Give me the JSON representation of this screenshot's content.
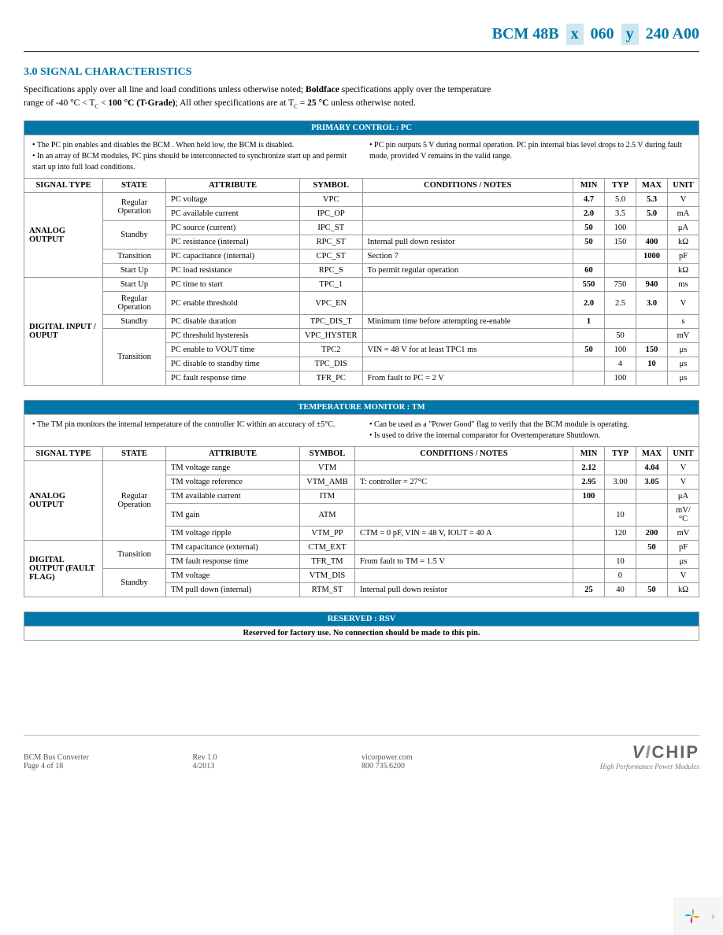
{
  "partNumber": {
    "p1": "BCM",
    "p2": "48B",
    "x": "x",
    "p3": "060",
    "y": "y",
    "p4": "240",
    "p5": "A00"
  },
  "sectionTitle": "3.0 SIGNAL CHARACTERISTICS",
  "intro1": "Specifications apply over all line and load conditions unless otherwise noted; ",
  "intro1b": "Boldface",
  "intro1c": " specifications apply over the temperature",
  "intro2a": "range of -40 °C < T",
  "intro2b": "C",
  "intro2c": " < ",
  "intro2d": "100 °C (T-Grade)",
  "intro2e": "; All other specifications are at T",
  "intro2f": "C",
  "intro2g": " = ",
  "intro2h": "25 °C",
  "intro2i": " unless otherwise noted.",
  "pc": {
    "title": "PRIMARY CONTROL : PC",
    "note1": "• The PC pin enables and disables the BCM          . When held low, the BCM     is disabled.",
    "note2": "• In an array of BCM        modules, PC pins should be interconnected to synchronize start up and permit start up into full load conditions.",
    "note3": "• PC pin outputs 5 V during normal operation. PC pin internal bias level drops to 2.5 V during fault mode, provided V              remains in the valid range.",
    "headers": {
      "signal": "SIGNAL TYPE",
      "state": "STATE",
      "attr": "ATTRIBUTE",
      "sym": "SYMBOL",
      "cond": "CONDITIONS / NOTES",
      "min": "MIN",
      "typ": "TYP",
      "max": "MAX",
      "unit": "UNIT"
    },
    "rows": [
      {
        "signal": "ANALOG OUTPUT",
        "sigSpan": 6,
        "state": "Regular Operation",
        "stSpan": 2,
        "attr": "PC voltage",
        "sym": "VPC",
        "cond": "",
        "min": "4.7",
        "typ": "5.0",
        "max": "5.3",
        "unit": "V"
      },
      {
        "attr": "PC available current",
        "sym": "IPC_OP",
        "cond": "",
        "min": "2.0",
        "typ": "3.5",
        "max": "5.0",
        "unit": "mA"
      },
      {
        "state": "Standby",
        "stSpan": 2,
        "attr": "PC source (current)",
        "sym": "IPC_ST",
        "cond": "",
        "min": "50",
        "typ": "100",
        "max": "",
        "unit": "μA"
      },
      {
        "attr": "PC resistance (internal)",
        "sym": "RPC_ST",
        "cond": "Internal pull down resistor",
        "min": "50",
        "typ": "150",
        "max": "400",
        "unit": "kΩ"
      },
      {
        "state": "Transition",
        "stSpan": 1,
        "attr": "PC capacitance (internal)",
        "sym": "CPC_ST",
        "cond": "Section 7",
        "min": "",
        "typ": "",
        "max": "1000",
        "unit": "pF"
      },
      {
        "state": "Start Up",
        "stSpan": 1,
        "attr": "PC load resistance",
        "sym": "RPC_S",
        "cond": "To permit regular operation",
        "min": "60",
        "typ": "",
        "max": "",
        "unit": "kΩ"
      },
      {
        "signal": "DIGITAL INPUT / OUPUT",
        "sigSpan": 7,
        "state": "Start Up",
        "stSpan": 1,
        "attr": "PC time to start",
        "sym": "TPC_1",
        "cond": "",
        "min": "550",
        "typ": "750",
        "max": "940",
        "unit": "ms"
      },
      {
        "state": "Regular Operation",
        "stSpan": 1,
        "attr": "PC enable threshold",
        "sym": "VPC_EN",
        "cond": "",
        "min": "2.0",
        "typ": "2.5",
        "max": "3.0",
        "unit": "V"
      },
      {
        "state": "Standby",
        "stSpan": 1,
        "attr": "PC disable duration",
        "sym": "TPC_DIS_T",
        "cond": "Minimum time before attempting re-enable",
        "min": "1",
        "typ": "",
        "max": "",
        "unit": "s"
      },
      {
        "state": "Transition",
        "stSpan": 4,
        "attr": "PC threshold hysteresis",
        "sym": "VPC_HYSTER",
        "cond": "",
        "min": "",
        "typ": "50",
        "max": "",
        "unit": "mV"
      },
      {
        "attr": "PC enable to VOUT  time",
        "sym": "TPC2",
        "cond": "VIN = 48 V for at least TPC1  ms",
        "min": "50",
        "typ": "100",
        "max": "150",
        "unit": "μs"
      },
      {
        "attr": "PC disable to standby time",
        "sym": "TPC_DIS",
        "cond": "",
        "min": "",
        "typ": "4",
        "max": "10",
        "unit": "μs"
      },
      {
        "attr": "PC fault response time",
        "sym": "TFR_PC",
        "cond": "From fault to PC = 2 V",
        "min": "",
        "typ": "100",
        "max": "",
        "unit": "μs"
      }
    ]
  },
  "tm": {
    "title": "TEMPERATURE MONITOR : TM",
    "note1": "• The TM pin monitors the internal temperature of the controller IC within an accuracy of ±5°C.",
    "note2": "• Can be used as a \"Power Good\" flag to verify that the BCM      module is operating.",
    "note3": "• Is used to drive the internal comparator for Overtemperature Shutdown.",
    "rows": [
      {
        "signal": "ANALOG OUTPUT",
        "sigSpan": 5,
        "state": "Regular Operation",
        "stSpan": 5,
        "attr": "TM voltage range",
        "sym": "VTM",
        "cond": "",
        "min": "2.12",
        "typ": "",
        "max": "4.04",
        "unit": "V"
      },
      {
        "attr": "TM voltage reference",
        "sym": "VTM_AMB",
        "cond": "T: controller = 27°C",
        "min": "2.95",
        "typ": "3.00",
        "max": "3.05",
        "unit": "V"
      },
      {
        "attr": "TM available current",
        "sym": "ITM",
        "cond": "",
        "min": "100",
        "typ": "",
        "max": "",
        "unit": "μA"
      },
      {
        "attr": "TM gain",
        "sym": "ATM",
        "cond": "",
        "min": "",
        "typ": "10",
        "max": "",
        "unit": "mV/°C"
      },
      {
        "attr": "TM voltage ripple",
        "sym": "VTM_PP",
        "cond": "CTM = 0 pF, VIN = 48 V, IOUT = 40 A",
        "min": "",
        "typ": "120",
        "max": "200",
        "unit": "mV"
      },
      {
        "signal": "DIGITAL OUTPUT (FAULT FLAG)",
        "sigSpan": 4,
        "state": "Transition",
        "stSpan": 2,
        "attr": "TM capacitance (external)",
        "sym": "CTM_EXT",
        "cond": "",
        "min": "",
        "typ": "",
        "max": "50",
        "unit": "pF"
      },
      {
        "attr": "TM fault response time",
        "sym": "TFR_TM",
        "cond": "From fault to TM = 1.5 V",
        "min": "",
        "typ": "10",
        "max": "",
        "unit": "μs"
      },
      {
        "state": "Standby",
        "stSpan": 2,
        "attr": "TM voltage",
        "sym": "VTM_DIS",
        "cond": "",
        "min": "",
        "typ": "0",
        "max": "",
        "unit": "V"
      },
      {
        "attr": "TM pull down (internal)",
        "sym": "RTM_ST",
        "cond": "Internal pull down resistor",
        "min": "25",
        "typ": "40",
        "max": "50",
        "unit": "kΩ"
      }
    ]
  },
  "rsv": {
    "title": "RESERVED : RSV",
    "note": "Reserved for factory use. No connection should be made to this pin."
  },
  "footer": {
    "product": "BCM    Bus Converter",
    "page": "Page 4 of 18",
    "rev": "Rev 1.0",
    "date": "4/2013",
    "web": "vicorpower.com",
    "phone": "800 735.6200",
    "logo1": "V",
    "logo2": "I",
    "logo3": "CHIP",
    "tagline": "High Performance Power Modules"
  }
}
